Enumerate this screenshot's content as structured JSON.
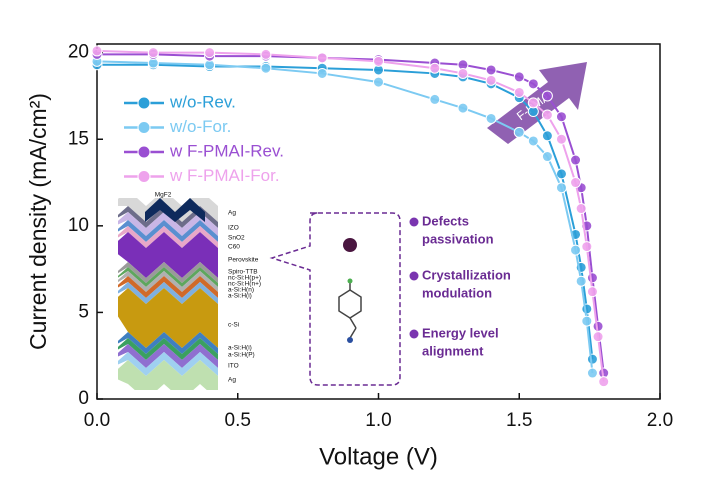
{
  "chart_data": {
    "type": "line",
    "x_label": "Voltage (V)",
    "y_label": "Current density (mA/cm²)",
    "x": [
      0,
      0.2,
      0.4,
      0.6,
      0.8,
      1.0,
      1.2,
      1.3,
      1.4,
      1.5,
      1.55,
      1.6,
      1.65,
      1.7,
      1.72,
      1.74,
      1.76,
      1.78,
      1.8,
      1.82
    ],
    "series": [
      {
        "name": "w/o-Rev.",
        "color": "#2b9fd8",
        "values": [
          19.3,
          19.3,
          19.2,
          19.2,
          19.1,
          19.0,
          18.8,
          18.6,
          18.2,
          17.4,
          16.6,
          15.2,
          13.0,
          9.5,
          7.6,
          5.2,
          2.3,
          null,
          null,
          null
        ]
      },
      {
        "name": "w/o-For.",
        "color": "#7ccaf2",
        "values": [
          19.5,
          19.4,
          19.3,
          19.1,
          18.8,
          18.3,
          17.3,
          16.8,
          16.2,
          15.4,
          14.9,
          14.0,
          12.2,
          8.6,
          6.8,
          4.5,
          1.5,
          null,
          null,
          null
        ]
      },
      {
        "name": "w F-PMAI-Rev.",
        "color": "#9a4fd2",
        "values": [
          19.9,
          19.9,
          19.8,
          19.8,
          19.7,
          19.6,
          19.4,
          19.3,
          19.0,
          18.6,
          18.2,
          17.5,
          16.3,
          13.8,
          12.2,
          10.0,
          7.0,
          4.2,
          1.5,
          null
        ]
      },
      {
        "name": "w F-PMAI-For.",
        "color": "#eea2ec",
        "values": [
          20.1,
          20.0,
          20.0,
          19.9,
          19.7,
          19.5,
          19.1,
          18.8,
          18.4,
          17.7,
          17.1,
          16.4,
          15.0,
          12.5,
          11.0,
          8.8,
          6.2,
          3.6,
          1.0,
          null
        ]
      }
    ],
    "xlim": [
      0,
      2.0
    ],
    "ylim": [
      0,
      20.5
    ],
    "xticks": [
      {
        "value": 0,
        "label": "0.0"
      },
      0.5,
      {
        "value": 1,
        "label": "1.0"
      },
      1.5,
      {
        "value": 2,
        "label": "2.0"
      }
    ],
    "yticks": [
      0,
      5,
      10,
      15,
      20
    ],
    "legend": "upper-left",
    "annotations": {
      "arrow": "F-PMAI",
      "layers": [
        "MgF2",
        "Ag",
        "IZO",
        "SnO2",
        "C60",
        "Perovskite",
        "Spiro-TTB",
        "nc-Si:H(p+)",
        "nc-Si:H(n+)",
        "a-Si:H(n)",
        "a-Si:H(i)",
        "c-Si",
        "a-Si:H(i)",
        "a-Si:H(P)",
        "ITO",
        "Ag"
      ],
      "callouts": [
        [
          "Defects",
          "passivation"
        ],
        [
          "Crystallization",
          "modulation"
        ],
        [
          "Energy level",
          "alignment"
        ]
      ]
    }
  }
}
